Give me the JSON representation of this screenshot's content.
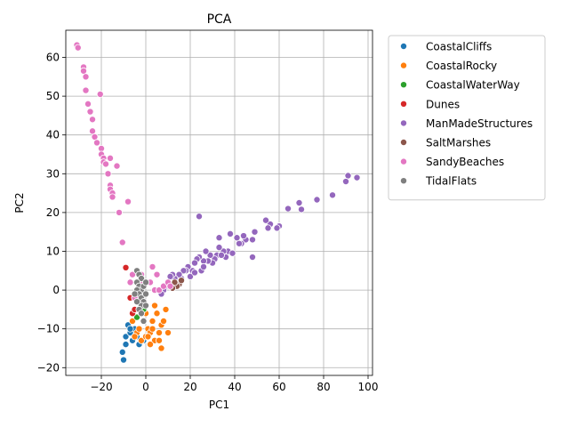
{
  "chart_data": {
    "type": "scatter",
    "title": "PCA",
    "xlabel": "PC1",
    "ylabel": "PC2",
    "xlim": [
      -36,
      102
    ],
    "ylim": [
      -22,
      67
    ],
    "xticks": [
      -20,
      0,
      20,
      40,
      60,
      80,
      100
    ],
    "yticks": [
      -20,
      -10,
      0,
      10,
      20,
      30,
      40,
      50,
      60
    ],
    "grid": true,
    "legend_position": "upper-right-outside",
    "series": [
      {
        "name": "CoastalCliffs",
        "color": "#1f77b4",
        "points": [
          [
            -10,
            -18
          ],
          [
            -10.5,
            -16
          ],
          [
            -9,
            -14
          ],
          [
            -9,
            -12
          ],
          [
            -7,
            -11
          ],
          [
            -8,
            -9
          ],
          [
            -6,
            -13
          ],
          [
            -5,
            -10
          ],
          [
            -3,
            -14
          ],
          [
            -1,
            -13
          ],
          [
            -4,
            -12
          ],
          [
            -7,
            -10
          ]
        ]
      },
      {
        "name": "CoastalRocky",
        "color": "#ff7f0e",
        "points": [
          [
            -6,
            -8
          ],
          [
            -4,
            -11
          ],
          [
            -2,
            -13
          ],
          [
            0,
            -12
          ],
          [
            1,
            -10
          ],
          [
            2,
            -11
          ],
          [
            3,
            -8
          ],
          [
            4,
            -4
          ],
          [
            5,
            -6
          ],
          [
            6,
            -11
          ],
          [
            7,
            -15
          ],
          [
            7,
            -9
          ],
          [
            8,
            -8
          ],
          [
            9,
            -5
          ],
          [
            10,
            -11
          ],
          [
            4,
            -13
          ],
          [
            2,
            -14
          ],
          [
            -1,
            -8
          ],
          [
            0,
            -6
          ],
          [
            -3,
            -10
          ],
          [
            -5,
            -12
          ],
          [
            6,
            -13
          ],
          [
            3,
            -10
          ],
          [
            1,
            -12
          ]
        ]
      },
      {
        "name": "CoastalWaterWay",
        "color": "#2ca02c",
        "points": [
          [
            -4,
            -7
          ],
          [
            -2,
            -6
          ],
          [
            -3,
            -3
          ],
          [
            -1,
            -5
          ]
        ]
      },
      {
        "name": "Dunes",
        "color": "#d62728",
        "points": [
          [
            -9,
            5.8
          ],
          [
            -6,
            -6
          ],
          [
            -7,
            -2
          ],
          [
            -5,
            -5
          ]
        ]
      },
      {
        "name": "ManMadeStructures",
        "color": "#9467bd",
        "points": [
          [
            95,
            29
          ],
          [
            91,
            29.5
          ],
          [
            90,
            28
          ],
          [
            84,
            24.5
          ],
          [
            77,
            23.3
          ],
          [
            70,
            20.8
          ],
          [
            69,
            22.5
          ],
          [
            64,
            21
          ],
          [
            60,
            16.5
          ],
          [
            59,
            16
          ],
          [
            56,
            17
          ],
          [
            55,
            16
          ],
          [
            54,
            18
          ],
          [
            49,
            15
          ],
          [
            48,
            13
          ],
          [
            45,
            13
          ],
          [
            44,
            14
          ],
          [
            43,
            12
          ],
          [
            42,
            12
          ],
          [
            41,
            13.5
          ],
          [
            38,
            14.5
          ],
          [
            37,
            10
          ],
          [
            36,
            8.5
          ],
          [
            35,
            10
          ],
          [
            33,
            13.5
          ],
          [
            33,
            11
          ],
          [
            32,
            9
          ],
          [
            31,
            8
          ],
          [
            30,
            7
          ],
          [
            29,
            9
          ],
          [
            28,
            7.5
          ],
          [
            27,
            10
          ],
          [
            26,
            7.5
          ],
          [
            25,
            5
          ],
          [
            24,
            19
          ],
          [
            24,
            8.5
          ],
          [
            23,
            8
          ],
          [
            22,
            7
          ],
          [
            21,
            5
          ],
          [
            20,
            3.5
          ],
          [
            19,
            6
          ],
          [
            18,
            5
          ],
          [
            17,
            5
          ],
          [
            16,
            3
          ],
          [
            15,
            4
          ],
          [
            14,
            2
          ],
          [
            13,
            3
          ],
          [
            12,
            4
          ],
          [
            11,
            3.5
          ],
          [
            10,
            2
          ],
          [
            9,
            1
          ],
          [
            8,
            0
          ],
          [
            7,
            -1
          ],
          [
            6,
            0
          ],
          [
            48,
            8.5
          ],
          [
            39,
            9.5
          ],
          [
            34,
            9
          ],
          [
            26,
            6
          ],
          [
            22,
            4.5
          ]
        ]
      },
      {
        "name": "SaltMarshes",
        "color": "#8c564b",
        "points": [
          [
            15,
            1.5
          ],
          [
            16,
            2.5
          ],
          [
            14,
            1
          ],
          [
            13,
            2
          ],
          [
            12,
            0.5
          ]
        ]
      },
      {
        "name": "SandyBeaches",
        "color": "#e377c2",
        "points": [
          [
            -31,
            63.2
          ],
          [
            -30.5,
            62.5
          ],
          [
            -28,
            57.5
          ],
          [
            -28,
            56.5
          ],
          [
            -27,
            55
          ],
          [
            -27,
            51.5
          ],
          [
            -26,
            48
          ],
          [
            -25,
            46
          ],
          [
            -24,
            44
          ],
          [
            -24,
            41
          ],
          [
            -23,
            39.5
          ],
          [
            -22,
            38
          ],
          [
            -20.5,
            50.5
          ],
          [
            -20,
            36.5
          ],
          [
            -20,
            35
          ],
          [
            -19,
            34
          ],
          [
            -19,
            33
          ],
          [
            -18,
            32.5
          ],
          [
            -17,
            30
          ],
          [
            -16,
            34
          ],
          [
            -16,
            27
          ],
          [
            -16,
            26
          ],
          [
            -15,
            25
          ],
          [
            -15,
            24
          ],
          [
            -13,
            32
          ],
          [
            -12,
            20
          ],
          [
            -10.5,
            12.3
          ],
          [
            -8,
            22.8
          ],
          [
            -7,
            2
          ],
          [
            -5,
            -2
          ],
          [
            -4,
            0
          ],
          [
            -3,
            -3
          ],
          [
            -1,
            2
          ],
          [
            2,
            2
          ],
          [
            3,
            6
          ],
          [
            4,
            0
          ],
          [
            5,
            4
          ],
          [
            6,
            0
          ],
          [
            8,
            1
          ],
          [
            10,
            2
          ],
          [
            11,
            1
          ],
          [
            -6,
            4
          ],
          [
            -2,
            4
          ]
        ]
      },
      {
        "name": "TidalFlats",
        "color": "#7f7f7f",
        "points": [
          [
            -4,
            5
          ],
          [
            -3,
            4
          ],
          [
            -2,
            3
          ],
          [
            -4,
            2
          ],
          [
            -3,
            1
          ],
          [
            -2,
            0
          ],
          [
            -4,
            0
          ],
          [
            -3,
            -1
          ],
          [
            -2,
            -2
          ],
          [
            -1,
            -3
          ],
          [
            -2,
            -4
          ],
          [
            -3,
            -5
          ],
          [
            0,
            -1
          ],
          [
            -1,
            1
          ],
          [
            0,
            2
          ],
          [
            -2,
            -6
          ],
          [
            -1,
            -8
          ],
          [
            0,
            -4
          ],
          [
            -5,
            -1
          ],
          [
            -4,
            -3
          ]
        ]
      }
    ]
  }
}
